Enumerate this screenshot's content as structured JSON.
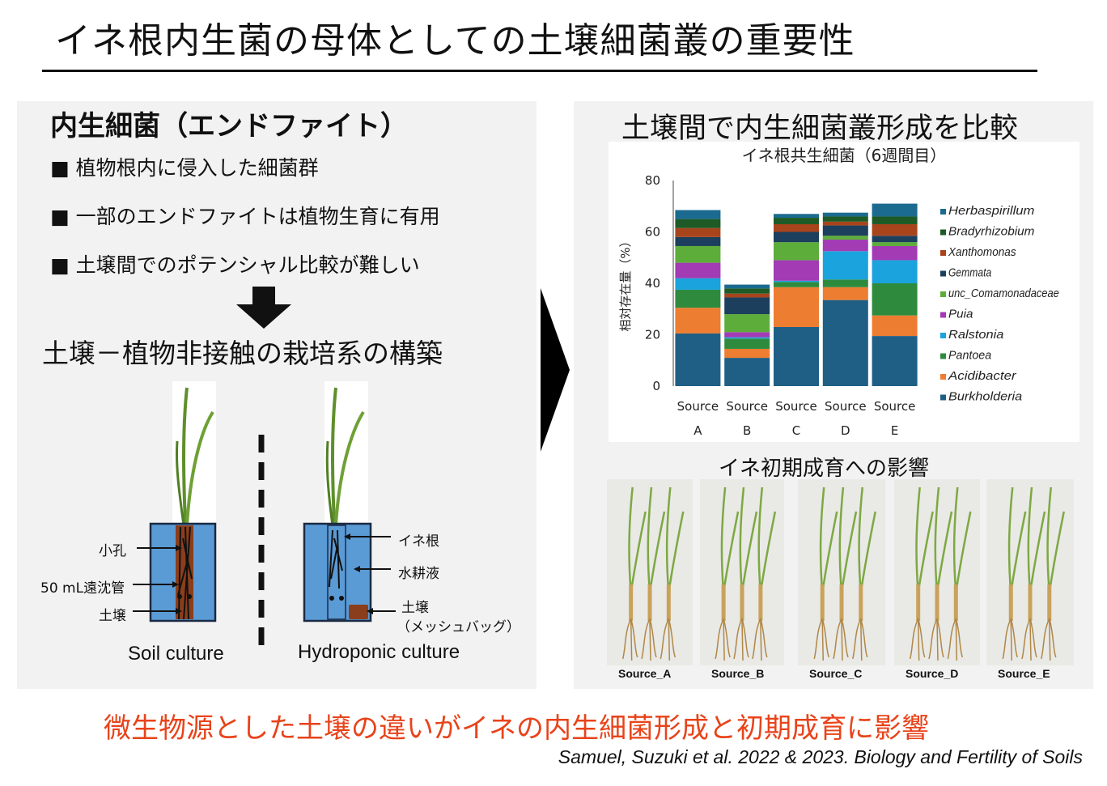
{
  "title": "イネ根内生菌の母体としての土壌細菌叢の重要性",
  "left": {
    "heading": "内生細菌（エンドファイト）",
    "bullets": [
      "■ 植物根内に侵入した細菌群",
      "■ 一部のエンドファイトは植物生育に有用",
      "■ 土壌間でのポテンシャル比較が難しい"
    ],
    "construct_title": "土壌－植物非接触の栽培系の構築",
    "soil_labels": [
      "小孔",
      "50 mL遠沈管",
      "土壌"
    ],
    "hydro_labels": [
      "イネ根",
      "水耕液",
      "土壌",
      "（メッシュバッグ）"
    ],
    "soil_culture": "Soil culture",
    "hydro_culture": "Hydroponic culture"
  },
  "right": {
    "heading": "土壌間で内生細菌叢形成を比較",
    "growth_title": "イネ初期成育への影響",
    "photo_labels": [
      "Source_A",
      "Source_B",
      "Source_C",
      "Source_D",
      "Source_E"
    ]
  },
  "chart_data": {
    "type": "bar",
    "stacked": true,
    "title": "イネ根共生細菌（6週間目）",
    "ylabel": "相対存在量（%）",
    "xlabel": "",
    "ylim": [
      0,
      80
    ],
    "yticks": [
      0,
      20,
      40,
      60,
      80
    ],
    "categories": [
      [
        "Source",
        "A"
      ],
      [
        "Source",
        "B"
      ],
      [
        "Source",
        "C"
      ],
      [
        "Source",
        "D"
      ],
      [
        "Source",
        "E"
      ]
    ],
    "legend_position": "right",
    "series": [
      {
        "name": "Burkholderia",
        "color": "#1f5f86",
        "values": [
          20.5,
          11,
          23,
          33.5,
          19.5
        ]
      },
      {
        "name": "Acidibacter",
        "color": "#ed7d31",
        "values": [
          10,
          3.5,
          15.5,
          5,
          8
        ]
      },
      {
        "name": "Pantoea",
        "color": "#2e8b3e",
        "values": [
          7,
          4,
          2,
          3,
          12.5
        ]
      },
      {
        "name": "Ralstonia",
        "color": "#1aa3dc",
        "values": [
          4.5,
          0.5,
          0.5,
          11,
          9
        ]
      },
      {
        "name": "Puia",
        "color": "#a23bb4",
        "values": [
          6,
          2,
          8,
          4.5,
          5.5
        ]
      },
      {
        "name": "unc_Comamonadaceae",
        "color": "#5dad3a",
        "values": [
          6.5,
          7,
          7,
          1.5,
          1.5
        ]
      },
      {
        "name": "Gemmata",
        "color": "#1b3f5c",
        "values": [
          3.5,
          6.5,
          4,
          4,
          2.5
        ]
      },
      {
        "name": "Xanthomonas",
        "color": "#a8441c",
        "values": [
          3.5,
          1.5,
          3,
          1.5,
          4.5
        ]
      },
      {
        "name": "Bradyrhizobium",
        "color": "#1e5a26",
        "values": [
          3.5,
          2,
          2.5,
          2,
          3
        ]
      },
      {
        "name": "Herbaspirillum",
        "color": "#1b6a8f",
        "values": [
          3.5,
          1.5,
          1.5,
          1.5,
          5
        ]
      }
    ]
  },
  "conclusion": "微生物源とした土壌の違いがイネの内生細菌形成と初期成育に影響",
  "citation": "Samuel, Suzuki et al. 2022 & 2023. Biology and Fertility of Soils",
  "colors": {
    "accent_red": "#e8431a",
    "tube_blue": "#5b9bd5",
    "soil_brown": "#8b3e1c",
    "panel_gray": "#f2f2f2"
  }
}
